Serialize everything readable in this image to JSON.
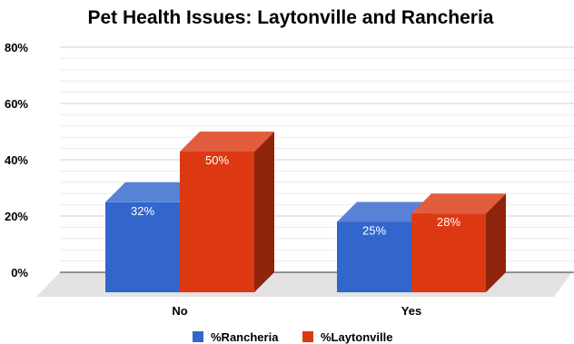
{
  "chart_data": {
    "type": "bar",
    "title": "Pet Health Issues: Laytonville and Rancheria",
    "categories": [
      "No",
      "Yes"
    ],
    "series": [
      {
        "name": "%Rancheria",
        "values": [
          32,
          25
        ],
        "labels": [
          "32%",
          "25%"
        ],
        "color": "#3366cc"
      },
      {
        "name": "%Laytonville",
        "values": [
          50,
          28
        ],
        "labels": [
          "50%",
          "28%"
        ],
        "color": "#dc3912"
      }
    ],
    "yticks": [
      "0%",
      "20%",
      "40%",
      "60%",
      "80%"
    ],
    "ylim": [
      0,
      80
    ],
    "xlabel": "",
    "ylabel": "",
    "grid": true,
    "legend": "bottom"
  }
}
